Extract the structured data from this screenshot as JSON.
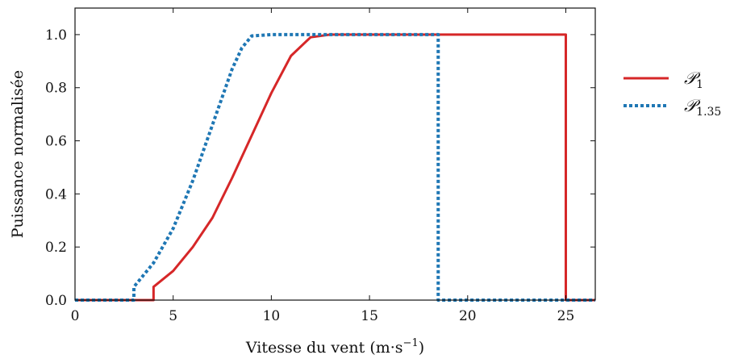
{
  "chart_data": {
    "type": "line",
    "title": "",
    "xlabel": "Vitesse du vent (m·s",
    "xlabel_sup": "−1",
    "xlabel_close": ")",
    "ylabel": "Puissance normalisée",
    "xlim": [
      0,
      26.5
    ],
    "ylim": [
      0,
      1.1
    ],
    "xticks": [
      0,
      5,
      10,
      15,
      20,
      25
    ],
    "yticks": [
      0.0,
      0.2,
      0.4,
      0.6,
      0.8,
      1.0
    ],
    "xtick_labels": [
      "0",
      "5",
      "10",
      "15",
      "20",
      "25"
    ],
    "ytick_labels": [
      "0.0",
      "0.2",
      "0.4",
      "0.6",
      "0.8",
      "1.0"
    ],
    "grid": false,
    "legend_position": "right",
    "series": [
      {
        "name": "𝒫",
        "name_sub": "1",
        "color": "#d62728",
        "style": "solid",
        "x": [
          0,
          4,
          4,
          5,
          6,
          7,
          8,
          9,
          10,
          11,
          12,
          13,
          15,
          20,
          25,
          25,
          26.5
        ],
        "y": [
          0,
          0,
          0.05,
          0.11,
          0.2,
          0.31,
          0.46,
          0.62,
          0.78,
          0.92,
          0.99,
          1.0,
          1.0,
          1.0,
          1.0,
          0,
          0
        ]
      },
      {
        "name": "𝒫",
        "name_sub": "1.35",
        "color": "#1f77b4",
        "style": "dotted",
        "x": [
          0,
          3,
          3,
          4,
          5,
          6,
          7,
          8,
          8.5,
          9,
          10,
          15,
          18.5,
          18.5,
          26.5
        ],
        "y": [
          0,
          0,
          0.05,
          0.14,
          0.27,
          0.45,
          0.66,
          0.87,
          0.95,
          0.995,
          1.0,
          1.0,
          1.0,
          0,
          0
        ]
      }
    ]
  }
}
